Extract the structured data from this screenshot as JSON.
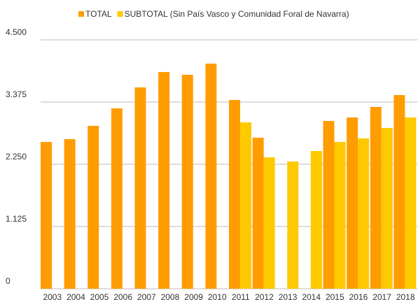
{
  "chart_data": {
    "type": "bar",
    "categories": [
      "2003",
      "2004",
      "2005",
      "2006",
      "2007",
      "2008",
      "2009",
      "2010",
      "2011",
      "2012",
      "2013",
      "2014",
      "2015",
      "2016",
      "2017",
      "2018"
    ],
    "series": [
      {
        "name": "TOTAL",
        "color": "#ff9c00",
        "values": [
          2654,
          2705,
          2945,
          3261,
          3640,
          3918,
          3868,
          4070,
          3413,
          2730,
          null,
          null,
          3034,
          3097,
          3287,
          3501
        ]
      },
      {
        "name": "SUBTOTAL (Sin País Vasco y Comunidad Foral de Navarra)",
        "color": "#ffc900",
        "values": [
          null,
          null,
          null,
          null,
          null,
          null,
          null,
          null,
          3008,
          2376,
          2300,
          2490,
          2654,
          2718,
          2907,
          3097
        ]
      }
    ],
    "ylim": [
      0,
      4500
    ],
    "yticks": [
      0,
      {
        "value": 1125,
        "label": "1.125"
      },
      {
        "value": 2250,
        "label": "2.250"
      },
      {
        "value": 3375,
        "label": "3.375"
      },
      {
        "value": 4500,
        "label": "4.500"
      }
    ],
    "grid": true,
    "legend": "top"
  }
}
